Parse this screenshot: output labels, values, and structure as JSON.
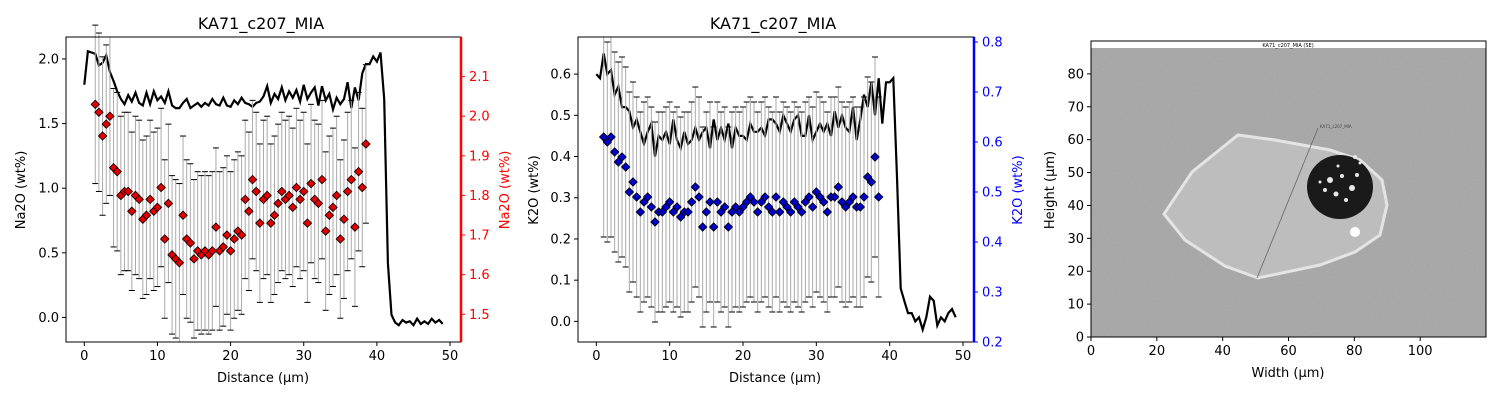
{
  "chart_data": [
    {
      "type": "line+scatter",
      "title": "KA71_c207_MIA",
      "xlabel": "Distance (µm)",
      "ylabel": "Na2O (wt%)",
      "ylabel_right": "Na2O (wt%)",
      "right_axis_color": "#ff0000",
      "marker_color": "#e00000",
      "xlim": [
        -2.5,
        51.5
      ],
      "ylim": [
        -0.19,
        2.17
      ],
      "ylim_right": [
        1.43,
        2.2
      ],
      "xticks": [
        0,
        10,
        20,
        30,
        40,
        50
      ],
      "yticks": [
        0.0,
        0.5,
        1.0,
        1.5,
        2.0
      ],
      "yticks_right": [
        1.5,
        1.6,
        1.7,
        1.8,
        1.9,
        2.0,
        2.1
      ],
      "profile": {
        "x": [
          0.0,
          0.5,
          1.0,
          1.5,
          2.0,
          2.5,
          3.0,
          3.5,
          4.0,
          4.5,
          5.0,
          5.5,
          6.0,
          6.5,
          7.0,
          7.5,
          8.0,
          8.5,
          9.0,
          9.5,
          10.0,
          10.5,
          11.0,
          11.5,
          12.0,
          12.5,
          13.0,
          13.5,
          14.0,
          14.5,
          15.0,
          15.5,
          16.0,
          16.5,
          17.0,
          17.5,
          18.0,
          18.5,
          19.0,
          19.5,
          20.0,
          20.5,
          21.0,
          21.5,
          22.0,
          22.5,
          23.0,
          23.5,
          24.0,
          24.5,
          25.0,
          25.5,
          26.0,
          26.5,
          27.0,
          27.5,
          28.0,
          28.5,
          29.0,
          29.5,
          30.0,
          30.5,
          31.0,
          31.5,
          32.0,
          32.5,
          33.0,
          33.5,
          34.0,
          34.5,
          35.0,
          35.5,
          36.0,
          36.5,
          37.0,
          37.5,
          38.0,
          38.5,
          39.0,
          39.5,
          40.0,
          40.5,
          41.0,
          41.5,
          42.0,
          42.5,
          43.0,
          43.5,
          44.0,
          44.5,
          45.0,
          45.5,
          46.0,
          46.5,
          47.0,
          47.5,
          48.0,
          48.5,
          49.0
        ],
        "y": [
          1.8,
          2.06,
          2.05,
          2.04,
          1.95,
          1.97,
          2.03,
          1.9,
          1.83,
          1.75,
          1.69,
          1.65,
          1.72,
          1.67,
          1.74,
          1.66,
          1.64,
          1.74,
          1.65,
          1.75,
          1.68,
          1.71,
          1.66,
          1.75,
          1.64,
          1.62,
          1.62,
          1.66,
          1.69,
          1.62,
          1.64,
          1.66,
          1.63,
          1.66,
          1.64,
          1.69,
          1.65,
          1.64,
          1.7,
          1.64,
          1.63,
          1.68,
          1.65,
          1.7,
          1.66,
          1.65,
          1.63,
          1.66,
          1.67,
          1.71,
          1.79,
          1.66,
          1.73,
          1.69,
          1.78,
          1.68,
          1.75,
          1.7,
          1.76,
          1.67,
          1.8,
          1.69,
          1.74,
          1.78,
          1.64,
          1.79,
          1.68,
          1.73,
          1.61,
          1.7,
          1.65,
          1.69,
          1.82,
          1.62,
          1.78,
          1.68,
          1.89,
          1.96,
          1.96,
          2.02,
          1.98,
          2.05,
          1.69,
          0.42,
          0.02,
          -0.04,
          -0.06,
          -0.02,
          -0.04,
          -0.03,
          -0.06,
          -0.01,
          -0.05,
          -0.03,
          -0.05,
          -0.01,
          -0.04,
          -0.02,
          -0.05
        ]
      },
      "points": {
        "x": [
          1.5,
          2.0,
          2.5,
          3.0,
          3.5,
          4.0,
          4.5,
          5.0,
          5.5,
          6.0,
          6.5,
          7.0,
          7.5,
          8.0,
          8.5,
          9.0,
          9.5,
          10.0,
          10.5,
          11.0,
          11.5,
          12.0,
          12.5,
          13.0,
          13.5,
          14.0,
          14.5,
          15.0,
          15.5,
          16.0,
          16.5,
          17.0,
          17.5,
          18.0,
          18.5,
          19.0,
          19.5,
          20.0,
          20.5,
          21.0,
          21.5,
          22.0,
          22.5,
          23.0,
          23.5,
          24.0,
          24.5,
          25.0,
          25.5,
          26.0,
          26.5,
          27.0,
          27.5,
          28.0,
          28.5,
          29.0,
          29.5,
          30.0,
          30.5,
          31.0,
          31.5,
          32.0,
          32.5,
          33.0,
          33.5,
          34.0,
          34.5,
          35.0,
          35.5,
          36.0,
          36.5,
          37.0,
          37.5,
          38.0,
          38.5
        ],
        "y": [
          2.03,
          2.01,
          1.95,
          1.98,
          2.0,
          1.87,
          1.86,
          1.8,
          1.81,
          1.81,
          1.76,
          1.8,
          1.79,
          1.74,
          1.75,
          1.79,
          1.76,
          1.77,
          1.82,
          1.69,
          1.78,
          1.65,
          1.64,
          1.63,
          1.75,
          1.69,
          1.68,
          1.64,
          1.66,
          1.65,
          1.66,
          1.65,
          1.66,
          1.72,
          1.66,
          1.67,
          1.7,
          1.66,
          1.69,
          1.71,
          1.7,
          1.79,
          1.76,
          1.84,
          1.81,
          1.73,
          1.79,
          1.8,
          1.73,
          1.75,
          1.78,
          1.81,
          1.79,
          1.8,
          1.77,
          1.82,
          1.79,
          1.81,
          1.73,
          1.83,
          1.79,
          1.78,
          1.84,
          1.71,
          1.75,
          1.77,
          1.8,
          1.69,
          1.74,
          1.81,
          1.84,
          1.72,
          1.86,
          1.82,
          1.93
        ],
        "err": 0.2
      }
    },
    {
      "type": "line+scatter",
      "title": "KA71_c207_MIA",
      "xlabel": "Distance (µm)",
      "ylabel": "K2O (wt%)",
      "ylabel_right": "K2O (wt%)",
      "right_axis_color": "#0000ff",
      "marker_color": "#0000c8",
      "xlim": [
        -2.5,
        51.5
      ],
      "ylim": [
        -0.05,
        0.69
      ],
      "ylim_right": [
        0.2,
        0.81
      ],
      "xticks": [
        0,
        10,
        20,
        30,
        40,
        50
      ],
      "yticks": [
        0.0,
        0.1,
        0.2,
        0.3,
        0.4,
        0.5,
        0.6
      ],
      "yticks_right": [
        0.2,
        0.3,
        0.4,
        0.5,
        0.6,
        0.7,
        0.8
      ],
      "profile": {
        "x": [
          0.0,
          0.5,
          1.0,
          1.5,
          2.0,
          2.5,
          3.0,
          3.5,
          4.0,
          4.5,
          5.0,
          5.5,
          6.0,
          6.5,
          7.0,
          7.5,
          8.0,
          8.5,
          9.0,
          9.5,
          10.0,
          10.5,
          11.0,
          11.5,
          12.0,
          12.5,
          13.0,
          13.5,
          14.0,
          14.5,
          15.0,
          15.5,
          16.0,
          16.5,
          17.0,
          17.5,
          18.0,
          18.5,
          19.0,
          19.5,
          20.0,
          20.5,
          21.0,
          21.5,
          22.0,
          22.5,
          23.0,
          23.5,
          24.0,
          24.5,
          25.0,
          25.5,
          26.0,
          26.5,
          27.0,
          27.5,
          28.0,
          28.5,
          29.0,
          29.5,
          30.0,
          30.5,
          31.0,
          31.5,
          32.0,
          32.5,
          33.0,
          33.5,
          34.0,
          34.5,
          35.0,
          35.5,
          36.0,
          36.5,
          37.0,
          37.5,
          38.0,
          38.5,
          39.0,
          39.5,
          40.0,
          40.5,
          41.0,
          41.5,
          42.0,
          42.5,
          43.0,
          43.5,
          44.0,
          44.5,
          45.0,
          45.5,
          46.0,
          46.5,
          47.0,
          47.5,
          48.0,
          48.5,
          49.0
        ],
        "y": [
          0.6,
          0.59,
          0.65,
          0.6,
          0.61,
          0.55,
          0.57,
          0.52,
          0.52,
          0.51,
          0.47,
          0.49,
          0.46,
          0.43,
          0.46,
          0.48,
          0.4,
          0.45,
          0.44,
          0.46,
          0.43,
          0.49,
          0.44,
          0.42,
          0.46,
          0.43,
          0.44,
          0.47,
          0.44,
          0.46,
          0.47,
          0.42,
          0.49,
          0.44,
          0.47,
          0.44,
          0.48,
          0.42,
          0.47,
          0.45,
          0.45,
          0.44,
          0.48,
          0.46,
          0.46,
          0.47,
          0.45,
          0.49,
          0.49,
          0.48,
          0.46,
          0.5,
          0.48,
          0.46,
          0.49,
          0.5,
          0.45,
          0.45,
          0.5,
          0.44,
          0.46,
          0.48,
          0.46,
          0.48,
          0.45,
          0.51,
          0.47,
          0.5,
          0.47,
          0.46,
          0.52,
          0.44,
          0.49,
          0.55,
          0.52,
          0.58,
          0.5,
          0.59,
          0.48,
          0.58,
          0.58,
          0.59,
          0.35,
          0.08,
          0.05,
          0.02,
          0.02,
          0.0,
          0.01,
          -0.02,
          0.01,
          0.06,
          0.05,
          -0.01,
          0.01,
          0.0,
          0.02,
          0.03,
          0.01
        ]
      },
      "points": {
        "x": [
          1.0,
          1.5,
          2.0,
          2.5,
          3.0,
          3.5,
          4.0,
          4.5,
          5.0,
          5.5,
          6.0,
          6.5,
          7.0,
          7.5,
          8.0,
          8.5,
          9.0,
          9.5,
          10.0,
          10.5,
          11.0,
          11.5,
          12.0,
          12.5,
          13.0,
          13.5,
          14.0,
          14.5,
          15.0,
          15.5,
          16.0,
          16.5,
          17.0,
          17.5,
          18.0,
          18.5,
          19.0,
          19.5,
          20.0,
          20.5,
          21.0,
          21.5,
          22.0,
          22.5,
          23.0,
          23.5,
          24.0,
          24.5,
          25.0,
          25.5,
          26.0,
          26.5,
          27.0,
          27.5,
          28.0,
          28.5,
          29.0,
          29.5,
          30.0,
          30.5,
          31.0,
          31.5,
          32.0,
          32.5,
          33.0,
          33.5,
          34.0,
          34.5,
          35.0,
          35.5,
          36.0,
          36.5,
          37.0,
          37.5,
          38.0,
          38.5
        ],
        "y": [
          0.61,
          0.6,
          0.61,
          0.58,
          0.56,
          0.57,
          0.55,
          0.5,
          0.52,
          0.49,
          0.46,
          0.48,
          0.49,
          0.47,
          0.44,
          0.46,
          0.46,
          0.47,
          0.48,
          0.46,
          0.47,
          0.45,
          0.46,
          0.46,
          0.48,
          0.51,
          0.49,
          0.43,
          0.46,
          0.48,
          0.43,
          0.48,
          0.46,
          0.47,
          0.43,
          0.46,
          0.47,
          0.46,
          0.47,
          0.48,
          0.49,
          0.48,
          0.46,
          0.48,
          0.49,
          0.47,
          0.46,
          0.49,
          0.46,
          0.48,
          0.47,
          0.46,
          0.48,
          0.47,
          0.46,
          0.48,
          0.49,
          0.47,
          0.5,
          0.49,
          0.48,
          0.46,
          0.49,
          0.49,
          0.51,
          0.48,
          0.47,
          0.48,
          0.49,
          0.47,
          0.47,
          0.49,
          0.53,
          0.52,
          0.57,
          0.49
        ],
        "err": 0.2
      }
    },
    {
      "type": "image",
      "xlabel": "Width (µm)",
      "ylabel": "Height (µm)",
      "image_caption": "KA71_c207_MIA (SE)",
      "image_annotation": "KA71_c207_MIA",
      "xlim": [
        0,
        120
      ],
      "ylim": [
        0,
        90
      ],
      "xticks": [
        0,
        20,
        40,
        60,
        80,
        100
      ],
      "yticks": [
        0,
        10,
        20,
        30,
        40,
        50,
        60,
        70,
        80
      ]
    }
  ]
}
